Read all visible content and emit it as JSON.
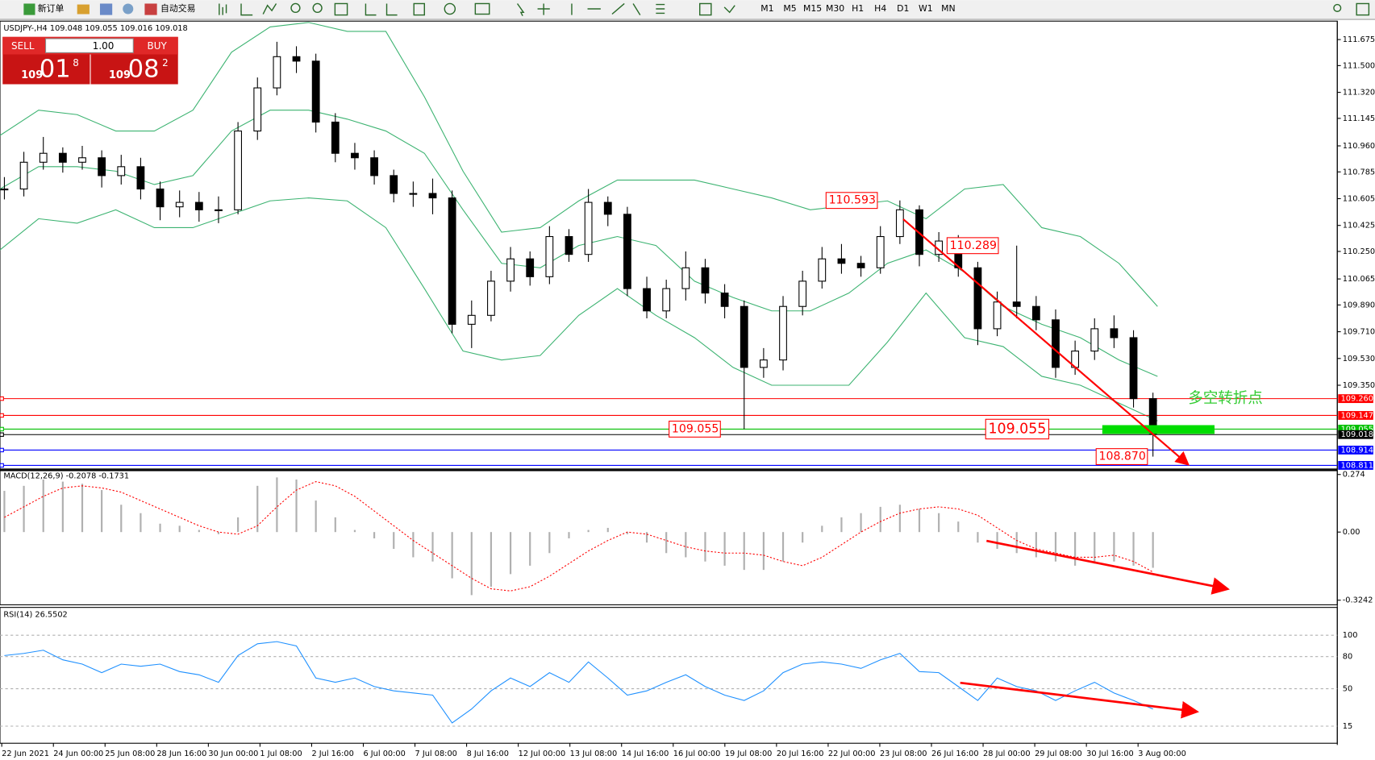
{
  "toolbar": {
    "new_order": "新订单",
    "auto_trading": "自动交易",
    "timeframes": [
      "M1",
      "M5",
      "M15",
      "M30",
      "H1",
      "H4",
      "D1",
      "W1",
      "MN"
    ]
  },
  "header": "USDJPY-,H4  109.048 109.055 109.016 109.018",
  "trade_panel": {
    "sell": "SELL",
    "buy": "BUY",
    "lots": "1.00",
    "sell_big": "109",
    "sell_main": "01",
    "sell_sup": "8",
    "buy_big": "109",
    "buy_main": "08",
    "buy_sup": "2"
  },
  "price_chart": {
    "ylim": [
      108.787,
      111.799
    ],
    "yticks": [
      111.675,
      {
        "value": 111.5,
        "label": "111.500"
      },
      {
        "value": 111.32,
        "label": "111.320"
      },
      111.145,
      {
        "value": 110.96,
        "label": "110.960"
      },
      110.785,
      110.605,
      110.425,
      {
        "value": 110.25,
        "label": "110.250"
      },
      110.065,
      {
        "value": 109.89,
        "label": "109.890"
      },
      {
        "value": 109.71,
        "label": "109.710"
      },
      {
        "value": 109.53,
        "label": "109.530"
      },
      {
        "value": 109.35,
        "label": "109.350"
      }
    ],
    "close": [
      110.67,
      110.85,
      110.91,
      110.85,
      110.88,
      110.76,
      110.82,
      110.67,
      110.55,
      110.58,
      110.53,
      110.53,
      111.06,
      111.35,
      111.56,
      111.53,
      111.12,
      110.91,
      110.88,
      110.76,
      110.64,
      110.64,
      110.61,
      109.76,
      109.82,
      110.05,
      110.2,
      110.08,
      110.35,
      110.23,
      110.58,
      110.5,
      110.0,
      109.85,
      110.0,
      110.14,
      109.97,
      109.88,
      109.47,
      109.52,
      109.88,
      110.05,
      110.2,
      110.17,
      110.14,
      110.35,
      110.53,
      110.23,
      110.32,
      110.14,
      109.73,
      109.91,
      109.88,
      109.79,
      109.47,
      109.58,
      109.73,
      109.67,
      109.26,
      109.02
    ],
    "high": [
      110.75,
      110.92,
      111.02,
      110.95,
      110.96,
      110.93,
      110.9,
      110.88,
      110.72,
      110.66,
      110.65,
      110.62,
      111.12,
      111.42,
      111.66,
      111.63,
      111.58,
      111.18,
      110.98,
      110.93,
      110.8,
      110.72,
      110.74,
      110.66,
      109.92,
      110.12,
      110.28,
      110.25,
      110.42,
      110.4,
      110.67,
      110.62,
      110.55,
      110.08,
      110.06,
      110.25,
      110.2,
      110.03,
      109.92,
      109.6,
      109.95,
      110.12,
      110.28,
      110.3,
      110.22,
      110.42,
      110.593,
      110.56,
      110.38,
      110.36,
      110.18,
      109.98,
      110.289,
      109.95,
      109.86,
      109.65,
      109.8,
      109.82,
      109.72,
      109.3
    ],
    "low": [
      110.6,
      110.62,
      110.8,
      110.78,
      110.8,
      110.68,
      110.7,
      110.6,
      110.46,
      110.48,
      110.45,
      110.44,
      110.5,
      111.0,
      111.3,
      111.45,
      111.05,
      110.85,
      110.8,
      110.7,
      110.58,
      110.55,
      110.5,
      109.7,
      109.6,
      109.78,
      109.98,
      110.02,
      110.03,
      110.18,
      110.18,
      110.42,
      109.95,
      109.8,
      109.8,
      109.92,
      109.9,
      109.8,
      109.055,
      109.4,
      109.45,
      109.82,
      110.0,
      110.1,
      110.08,
      110.1,
      110.3,
      110.15,
      110.18,
      110.08,
      109.62,
      109.68,
      109.8,
      109.72,
      109.4,
      109.42,
      109.52,
      109.6,
      109.2,
      108.87
    ],
    "bb_upper": [
      111.03,
      111.2,
      111.17,
      111.06,
      111.06,
      111.2,
      111.59,
      111.76,
      111.79,
      111.73,
      111.73,
      111.29,
      110.79,
      110.38,
      110.41,
      110.59,
      110.73,
      110.73,
      110.73,
      110.67,
      110.61,
      110.53,
      110.56,
      110.59,
      110.47,
      110.67,
      110.7,
      110.41,
      110.35,
      110.17,
      109.88
    ],
    "bb_mid": [
      110.67,
      110.82,
      110.82,
      110.79,
      110.7,
      110.76,
      111.06,
      111.2,
      111.2,
      111.14,
      111.06,
      110.91,
      110.53,
      110.17,
      110.14,
      110.29,
      110.35,
      110.29,
      110.05,
      109.94,
      109.85,
      109.85,
      109.97,
      110.17,
      110.26,
      110.11,
      109.88,
      109.76,
      109.67,
      109.52,
      109.41
    ],
    "bb_lower": [
      110.26,
      110.47,
      110.44,
      110.53,
      110.41,
      110.41,
      110.5,
      110.59,
      110.61,
      110.59,
      110.41,
      110.0,
      109.58,
      109.52,
      109.55,
      109.82,
      110.0,
      109.82,
      109.67,
      109.47,
      109.35,
      109.35,
      109.35,
      109.64,
      109.97,
      109.67,
      109.61,
      109.41,
      109.35,
      109.23,
      109.11
    ],
    "levels": [
      {
        "value": 109.26,
        "label": "109.260",
        "color": "#ff0000"
      },
      {
        "value": 109.147,
        "color": "#ff0000"
      },
      {
        "value": 109.055,
        "color": "#00c000"
      },
      {
        "value": 109.018,
        "color": "#000000"
      },
      {
        "value": 108.914,
        "color": "#0000ff"
      },
      {
        "value": 108.811,
        "color": "#0000ff"
      }
    ],
    "annotations": [
      {
        "value": 110.593,
        "label": "110.593"
      },
      {
        "value": 110.289,
        "label": "110.289"
      },
      {
        "value": 109.055,
        "label": "109.055"
      },
      {
        "value": 109.055,
        "label": "109.055"
      },
      {
        "value": 108.87,
        "label": "108.870"
      }
    ],
    "note": "多空转折点"
  },
  "macd": {
    "title": "MACD(12,26,9) -0.2078 -0.1731",
    "ylim": [
      -0.346,
      0.292
    ],
    "yticks": [
      0.274,
      {
        "value": 0,
        "label": "0.00"
      },
      -0.3242
    ],
    "histogram": [
      0.196,
      0.22,
      0.25,
      0.24,
      0.23,
      0.2,
      0.13,
      0.09,
      0.04,
      0.03,
      0.01,
      -0.01,
      0.07,
      0.22,
      0.26,
      0.25,
      0.15,
      0.07,
      0.01,
      -0.03,
      -0.08,
      -0.12,
      -0.14,
      -0.22,
      -0.3,
      -0.26,
      -0.2,
      -0.16,
      -0.1,
      -0.03,
      0.01,
      0.02,
      -0.01,
      -0.05,
      -0.1,
      -0.12,
      -0.14,
      -0.16,
      -0.18,
      -0.18,
      -0.14,
      -0.05,
      0.03,
      0.07,
      0.09,
      0.12,
      0.13,
      0.11,
      0.09,
      0.05,
      -0.05,
      -0.08,
      -0.1,
      -0.12,
      -0.14,
      -0.16,
      -0.15,
      -0.14,
      -0.16,
      -0.17
    ],
    "signal": [
      0.07,
      0.12,
      0.17,
      0.21,
      0.22,
      0.21,
      0.19,
      0.15,
      0.11,
      0.07,
      0.03,
      0.0,
      -0.01,
      0.03,
      0.12,
      0.2,
      0.24,
      0.22,
      0.17,
      0.1,
      0.03,
      -0.04,
      -0.1,
      -0.16,
      -0.22,
      -0.27,
      -0.28,
      -0.26,
      -0.21,
      -0.15,
      -0.09,
      -0.04,
      0.0,
      -0.01,
      -0.04,
      -0.07,
      -0.09,
      -0.1,
      -0.1,
      -0.11,
      -0.14,
      -0.16,
      -0.12,
      -0.06,
      0.0,
      0.05,
      0.09,
      0.11,
      0.12,
      0.11,
      0.08,
      0.02,
      -0.04,
      -0.08,
      -0.1,
      -0.12,
      -0.12,
      -0.11,
      -0.14,
      -0.19
    ]
  },
  "rsi": {
    "title": "RSI(14) 26.5502",
    "ylim": [
      -1,
      126
    ],
    "yticks": [
      100,
      80,
      50,
      15
    ],
    "values": [
      81,
      83,
      86,
      77,
      73,
      65,
      73,
      71,
      73,
      66,
      63,
      56,
      81,
      92,
      94,
      90,
      60,
      56,
      60,
      52,
      48,
      46,
      44,
      18,
      31,
      48,
      60,
      52,
      65,
      56,
      75,
      60,
      44,
      48,
      56,
      63,
      52,
      44,
      39,
      48,
      65,
      73,
      75,
      73,
      69,
      77,
      83,
      66,
      65,
      52,
      39,
      60,
      52,
      48,
      39,
      48,
      56,
      46,
      39,
      31
    ]
  },
  "time_axis": [
    "22 Jun 2021",
    "24 Jun 00:00",
    "25 Jun 08:00",
    "28 Jun 16:00",
    "30 Jun 00:00",
    "1 Jul 08:00",
    "2 Jul 16:00",
    "6 Jul 00:00",
    "7 Jul 08:00",
    "8 Jul 16:00",
    "12 Jul 00:00",
    "13 Jul 08:00",
    "14 Jul 16:00",
    "16 Jul 00:00",
    "19 Jul 08:00",
    "20 Jul 16:00",
    "22 Jul 00:00",
    "23 Jul 08:00",
    "26 Jul 16:00",
    "28 Jul 00:00",
    "29 Jul 08:00",
    "30 Jul 16:00",
    "3 Aug 00:00"
  ]
}
